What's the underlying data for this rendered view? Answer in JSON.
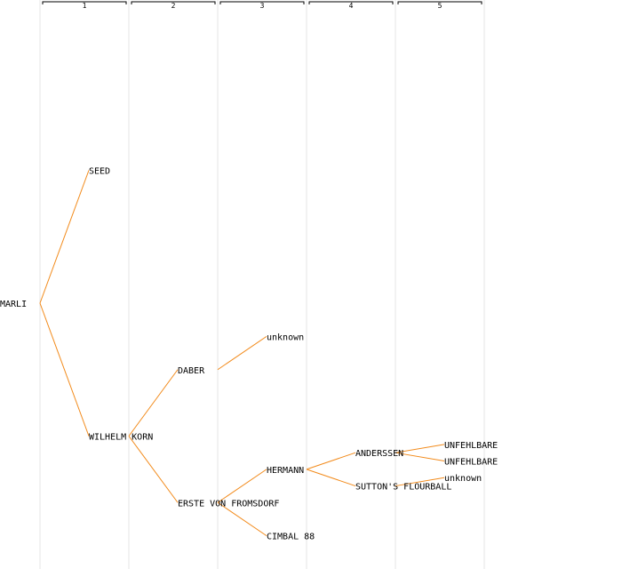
{
  "generations": [
    "1",
    "2",
    "3",
    "4",
    "5"
  ],
  "colors": {
    "edge": "#f28a1a",
    "divider": "#e4e4e4",
    "text": "#000000"
  },
  "root": {
    "name": "MARLI",
    "children": [
      {
        "name": "SEED"
      },
      {
        "name": "WILHELM KORN",
        "children": [
          {
            "name": "DABER",
            "children": [
              {
                "name": "unknown"
              }
            ]
          },
          {
            "name": "ERSTE VON FROMSDORF",
            "children": [
              {
                "name": "HERMANN",
                "children": [
                  {
                    "name": "ANDERSSEN",
                    "children": [
                      {
                        "name": "UNFEHLBARE"
                      },
                      {
                        "name": "UNFEHLBARE"
                      }
                    ]
                  },
                  {
                    "name": "SUTTON'S FLOURBALL",
                    "children": [
                      {
                        "name": "unknown"
                      }
                    ]
                  }
                ]
              },
              {
                "name": "CIMBAL 88"
              }
            ]
          }
        ]
      }
    ]
  }
}
